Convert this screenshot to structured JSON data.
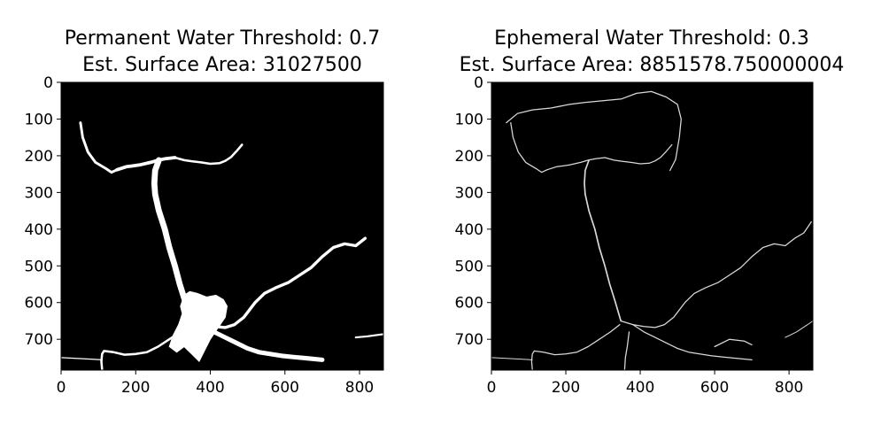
{
  "chart_data": [
    {
      "type": "heatmap",
      "colormap": "gray",
      "title_lines": [
        "Permanent Water Threshold: 0.7",
        "Est. Surface Area: 31027500"
      ],
      "xlim": [
        0,
        864
      ],
      "ylim": [
        784,
        0
      ],
      "xticks": [
        0,
        200,
        400,
        600,
        800
      ],
      "yticks": [
        0,
        100,
        200,
        300,
        400,
        500,
        600,
        700
      ],
      "grid": false,
      "rivers": [
        {
          "points": [
            [
              52,
              110
            ],
            [
              58,
              150
            ],
            [
              72,
              190
            ],
            [
              92,
              218
            ],
            [
              120,
              235
            ],
            [
              135,
              245
            ],
            [
              150,
              238
            ]
          ],
          "width": 7
        },
        {
          "points": [
            [
              150,
              238
            ],
            [
              175,
              230
            ],
            [
              190,
              228
            ],
            [
              210,
              225
            ],
            [
              240,
              218
            ],
            [
              260,
              212
            ],
            [
              280,
              208
            ],
            [
              305,
              205
            ]
          ],
          "width": 9
        },
        {
          "points": [
            [
              305,
              205
            ],
            [
              330,
              212
            ],
            [
              350,
              215
            ],
            [
              375,
              218
            ],
            [
              400,
              222
            ],
            [
              425,
              220
            ],
            [
              440,
              214
            ],
            [
              455,
              204
            ],
            [
              470,
              188
            ],
            [
              485,
              170
            ]
          ],
          "width": 6
        },
        {
          "points": [
            [
              262,
              212
            ],
            [
              252,
              240
            ],
            [
              250,
              275
            ],
            [
              252,
              305
            ],
            [
              262,
              350
            ],
            [
              278,
              400
            ],
            [
              290,
              450
            ],
            [
              305,
              500
            ],
            [
              318,
              550
            ],
            [
              332,
              595
            ],
            [
              348,
              650
            ]
          ],
          "width": 16
        },
        {
          "points": [
            [
              348,
              650
            ],
            [
              380,
              660
            ],
            [
              410,
              665
            ],
            [
              440,
              668
            ],
            [
              465,
              660
            ],
            [
              490,
              640
            ],
            [
              520,
              600
            ],
            [
              545,
              575
            ],
            [
              575,
              560
            ],
            [
              610,
              545
            ],
            [
              640,
              525
            ],
            [
              670,
              505
            ],
            [
              700,
              475
            ],
            [
              730,
              450
            ],
            [
              760,
              440
            ],
            [
              790,
              445
            ],
            [
              815,
              425
            ]
          ],
          "width": 8
        },
        {
          "points": [
            [
              380,
              660
            ],
            [
              410,
              680
            ],
            [
              440,
              695
            ],
            [
              470,
              710
            ],
            [
              500,
              725
            ],
            [
              530,
              735
            ],
            [
              560,
              740
            ],
            [
              590,
              745
            ],
            [
              620,
              748
            ],
            [
              660,
              752
            ],
            [
              700,
              756
            ]
          ],
          "width": 12
        },
        {
          "points": [
            [
              345,
              660
            ],
            [
              320,
              680
            ],
            [
              290,
              700
            ],
            [
              260,
              720
            ],
            [
              230,
              735
            ],
            [
              200,
              740
            ],
            [
              170,
              742
            ],
            [
              140,
              735
            ],
            [
              115,
              732
            ],
            [
              110,
              740
            ],
            [
              108,
              760
            ],
            [
              110,
              782
            ]
          ],
          "width": 6
        },
        {
          "points": [
            [
              0,
              750
            ],
            [
              40,
              752
            ],
            [
              80,
              754
            ],
            [
              110,
              756
            ]
          ],
          "width": 3
        },
        {
          "points": [
            [
              790,
              695
            ],
            [
              820,
              692
            ],
            [
              850,
              688
            ],
            [
              864,
              686
            ]
          ],
          "width": 5
        }
      ],
      "lakes": [
        {
          "points": [
            [
              330,
              580
            ],
            [
              345,
              570
            ],
            [
              365,
              575
            ],
            [
              390,
              585
            ],
            [
              415,
              580
            ],
            [
              435,
              592
            ],
            [
              445,
              610
            ],
            [
              440,
              640
            ],
            [
              420,
              670
            ],
            [
              400,
              700
            ],
            [
              385,
              730
            ],
            [
              370,
              760
            ],
            [
              350,
              740
            ],
            [
              330,
              720
            ],
            [
              310,
              735
            ],
            [
              290,
              720
            ],
            [
              300,
              690
            ],
            [
              315,
              660
            ],
            [
              325,
              630
            ],
            [
              320,
              610
            ]
          ]
        }
      ]
    },
    {
      "type": "heatmap",
      "colormap": "gray",
      "title_lines": [
        "Ephemeral Water Threshold: 0.3",
        "Est. Surface Area: 8851578.750000004"
      ],
      "xlim": [
        0,
        864
      ],
      "ylim": [
        784,
        0
      ],
      "xticks": [
        0,
        200,
        400,
        600,
        800
      ],
      "yticks": [
        0,
        100,
        200,
        300,
        400,
        500,
        600,
        700
      ],
      "grid": false,
      "rivers": [
        {
          "points": [
            [
              52,
              110
            ],
            [
              58,
              150
            ],
            [
              72,
              190
            ],
            [
              92,
              218
            ],
            [
              120,
              235
            ],
            [
              135,
              245
            ],
            [
              150,
              238
            ]
          ],
          "width": 3
        },
        {
          "points": [
            [
              150,
              238
            ],
            [
              175,
              230
            ],
            [
              190,
              228
            ],
            [
              210,
              225
            ],
            [
              240,
              218
            ],
            [
              260,
              212
            ],
            [
              280,
              208
            ],
            [
              305,
              205
            ]
          ],
          "width": 3
        },
        {
          "points": [
            [
              305,
              205
            ],
            [
              330,
              212
            ],
            [
              350,
              215
            ],
            [
              375,
              218
            ],
            [
              400,
              222
            ],
            [
              425,
              220
            ],
            [
              440,
              214
            ],
            [
              455,
              204
            ],
            [
              470,
              188
            ],
            [
              485,
              170
            ]
          ],
          "width": 3
        },
        {
          "points": [
            [
              40,
              110
            ],
            [
              70,
              85
            ],
            [
              110,
              75
            ],
            [
              160,
              70
            ],
            [
              210,
              60
            ],
            [
              250,
              55
            ],
            [
              300,
              50
            ],
            [
              350,
              45
            ],
            [
              390,
              30
            ],
            [
              430,
              25
            ],
            [
              470,
              40
            ],
            [
              500,
              60
            ],
            [
              510,
              100
            ],
            [
              505,
              150
            ],
            [
              495,
              210
            ],
            [
              480,
              240
            ]
          ],
          "width": 3
        },
        {
          "points": [
            [
              262,
              212
            ],
            [
              252,
              240
            ],
            [
              250,
              275
            ],
            [
              252,
              305
            ],
            [
              262,
              350
            ],
            [
              278,
              400
            ],
            [
              290,
              450
            ],
            [
              305,
              500
            ],
            [
              318,
              550
            ],
            [
              332,
              595
            ],
            [
              348,
              650
            ]
          ],
          "width": 4
        },
        {
          "points": [
            [
              348,
              650
            ],
            [
              380,
              660
            ],
            [
              410,
              665
            ],
            [
              440,
              668
            ],
            [
              465,
              660
            ],
            [
              490,
              640
            ],
            [
              520,
              600
            ],
            [
              545,
              575
            ],
            [
              575,
              560
            ],
            [
              610,
              545
            ],
            [
              640,
              525
            ],
            [
              670,
              505
            ],
            [
              700,
              475
            ],
            [
              730,
              450
            ],
            [
              760,
              440
            ],
            [
              790,
              445
            ],
            [
              815,
              425
            ],
            [
              840,
              410
            ],
            [
              860,
              380
            ]
          ],
          "width": 3
        },
        {
          "points": [
            [
              380,
              660
            ],
            [
              410,
              680
            ],
            [
              440,
              695
            ],
            [
              470,
              710
            ],
            [
              500,
              725
            ],
            [
              530,
              735
            ],
            [
              560,
              740
            ],
            [
              590,
              745
            ],
            [
              620,
              748
            ],
            [
              660,
              752
            ],
            [
              700,
              756
            ]
          ],
          "width": 3
        },
        {
          "points": [
            [
              345,
              660
            ],
            [
              320,
              680
            ],
            [
              290,
              700
            ],
            [
              260,
              720
            ],
            [
              230,
              735
            ],
            [
              200,
              740
            ],
            [
              170,
              742
            ],
            [
              140,
              735
            ],
            [
              115,
              732
            ],
            [
              110,
              740
            ],
            [
              108,
              760
            ],
            [
              110,
              782
            ]
          ],
          "width": 3
        },
        {
          "points": [
            [
              0,
              750
            ],
            [
              40,
              752
            ],
            [
              80,
              754
            ],
            [
              110,
              756
            ]
          ],
          "width": 2
        },
        {
          "points": [
            [
              370,
              680
            ],
            [
              365,
              720
            ],
            [
              360,
              750
            ],
            [
              358,
              784
            ]
          ],
          "width": 3
        },
        {
          "points": [
            [
              600,
              720
            ],
            [
              640,
              700
            ],
            [
              680,
              705
            ],
            [
              700,
              715
            ]
          ],
          "width": 3
        },
        {
          "points": [
            [
              790,
              695
            ],
            [
              820,
              680
            ],
            [
              850,
              660
            ],
            [
              864,
              650
            ]
          ],
          "width": 2
        }
      ],
      "lakes": []
    }
  ]
}
